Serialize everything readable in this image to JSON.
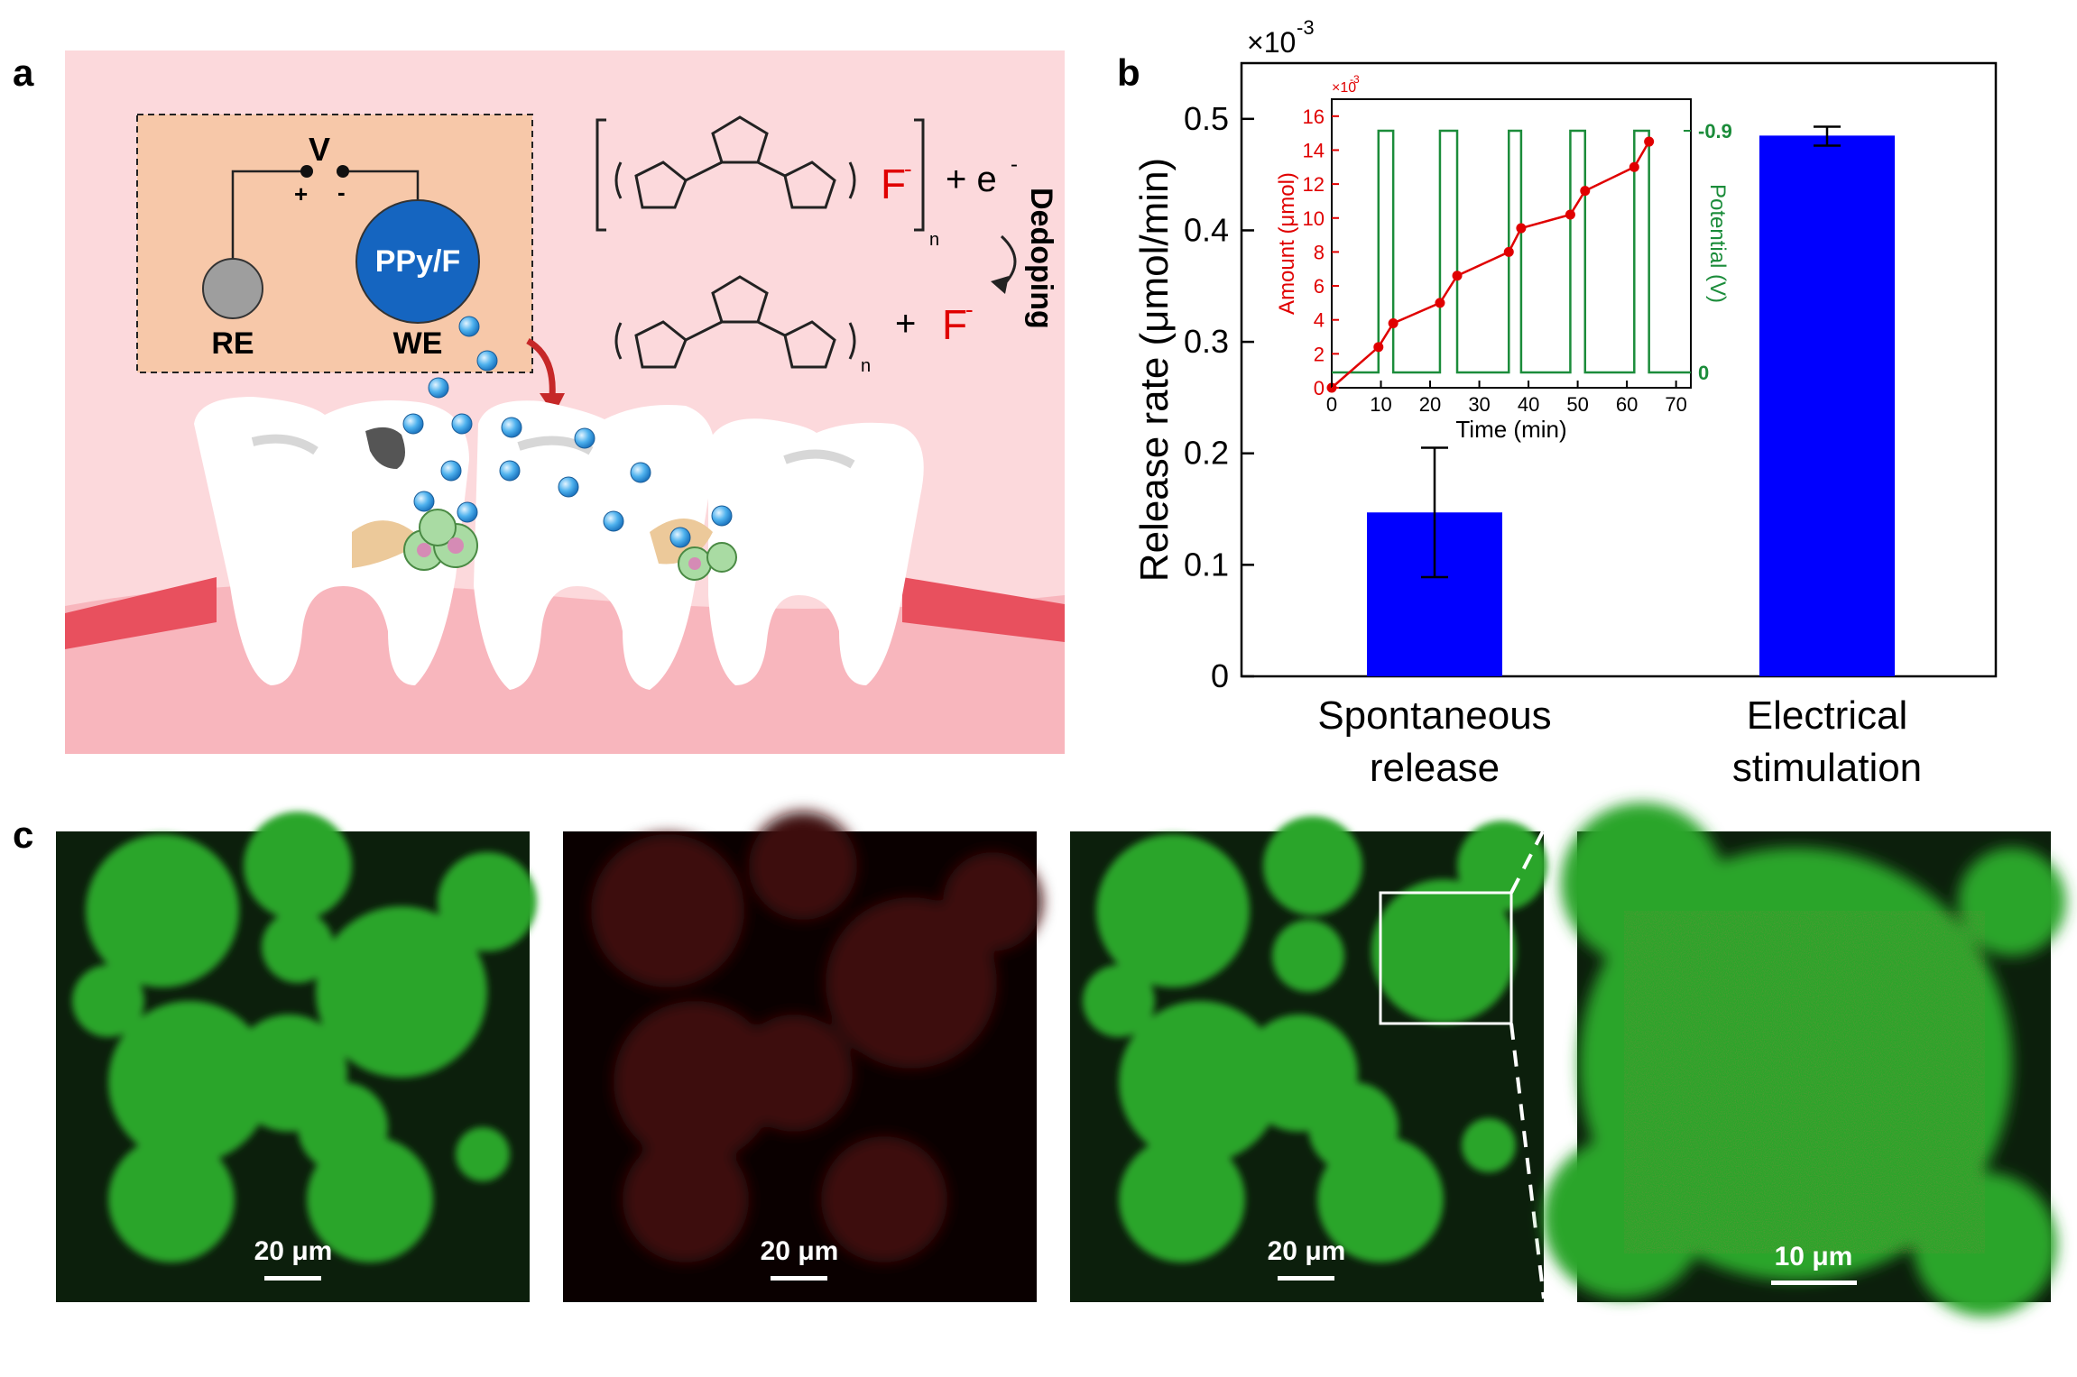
{
  "panel_labels": {
    "a": "a",
    "b": "b",
    "c": "c"
  },
  "schematic": {
    "voltage_label": "V",
    "plus": "+",
    "minus": "-",
    "re_label": "RE",
    "we_label": "WE",
    "electrode_label": "PPy/F",
    "fluoride": "F",
    "charge": "-",
    "subscript_n": "n",
    "plus_electron": "+ e",
    "plus_sign": "+",
    "dedoping_label": "Dedoping",
    "colors": {
      "background": "#fcd9dc",
      "box": "#f7c8a9",
      "electrode": "#1565c0",
      "ion": "#42a5f5",
      "fluoride_text": "#e00000"
    }
  },
  "chart_data": [
    {
      "type": "bar",
      "categories": [
        "Spontaneous\nrelease",
        "Electrical\nstimulation"
      ],
      "category_lines": [
        [
          "Spontaneous",
          "release"
        ],
        [
          "Electrical",
          "stimulation"
        ]
      ],
      "values": [
        0.147,
        0.485
      ],
      "errors": [
        [
          0.089,
          0.205
        ],
        [
          0.476,
          0.493
        ]
      ],
      "ylabel": "Release rate (μmol/min)",
      "ylim": [
        0,
        0.55
      ],
      "yticks": [
        "0",
        "0.1",
        "0.2",
        "0.3",
        "0.4",
        "0.5"
      ],
      "scale_note": "×10",
      "scale_exp": "-3",
      "grid": false,
      "bar_color": "#0000ff"
    },
    {
      "type": "line",
      "name": "inset",
      "xlabel": "Time (min)",
      "xlim": [
        0,
        73
      ],
      "xticks": [
        "0",
        "10",
        "20",
        "30",
        "40",
        "50",
        "60",
        "70"
      ],
      "series": [
        {
          "axis": "left",
          "ylabel": "Amount (μmol)",
          "scale_note": "×10",
          "scale_exp": "-3",
          "ylim": [
            0,
            17
          ],
          "yticks": [
            "0",
            "2",
            "4",
            "6",
            "8",
            "10",
            "12",
            "14",
            "16"
          ],
          "x": [
            0,
            9.5,
            12.5,
            22,
            25.5,
            36,
            38.5,
            48.5,
            51.5,
            61.5,
            64.5
          ],
          "y": [
            0,
            2.4,
            3.8,
            5,
            6.6,
            8,
            9.4,
            10.2,
            11.6,
            13,
            14.5
          ],
          "color": "#e00000"
        },
        {
          "axis": "right",
          "ylabel": "Potential (V)",
          "yticks": [
            "0",
            "-0.9"
          ],
          "pulses": [
            [
              9.5,
              12.5
            ],
            [
              22,
              25.5
            ],
            [
              36,
              38.5
            ],
            [
              48.5,
              51.5
            ],
            [
              61.5,
              64.5
            ]
          ],
          "color": "#1b8c3a"
        }
      ]
    }
  ],
  "micrographs": [
    {
      "scale_bar": "20 μm",
      "channel": "green"
    },
    {
      "scale_bar": "20 μm",
      "channel": "red"
    },
    {
      "scale_bar": "20 μm",
      "channel": "merge"
    },
    {
      "scale_bar": "10 μm",
      "channel": "zoom"
    }
  ]
}
